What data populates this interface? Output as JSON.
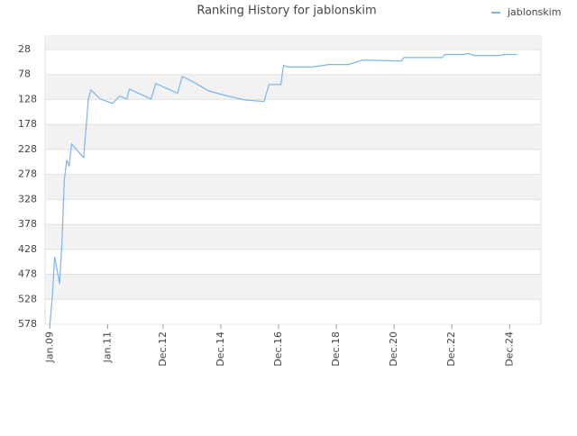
{
  "chart_data": {
    "type": "line",
    "title": "Ranking History for jablonskim",
    "x": [
      "2009-01",
      "2009-02",
      "2009-03",
      "2009-05",
      "2009-06",
      "2009-07",
      "2009-08",
      "2009-09",
      "2009-10",
      "2010-03",
      "2010-05",
      "2010-06",
      "2010-10",
      "2011-03",
      "2011-06",
      "2011-09",
      "2011-10",
      "2012-07",
      "2012-09",
      "2013-03",
      "2013-06",
      "2013-08",
      "2013-11",
      "2014-01",
      "2014-07",
      "2015-02",
      "2015-10",
      "2016-06",
      "2016-08",
      "2017-01",
      "2017-02",
      "2017-04",
      "2018-02",
      "2018-09",
      "2019-05",
      "2019-11",
      "2021-03",
      "2021-04",
      "2022-08",
      "2022-09",
      "2023-05",
      "2023-07",
      "2023-09",
      "2024-08",
      "2024-10",
      "2025-03"
    ],
    "series": [
      {
        "name": "jablonskim",
        "color": "#7cb5ec",
        "values": [
          578,
          524,
          443,
          497,
          416,
          289,
          249,
          262,
          217,
          244,
          127,
          109,
          127,
          136,
          121,
          127,
          107,
          127,
          96,
          109,
          116,
          82,
          89,
          94,
          111,
          120,
          129,
          132,
          98,
          98,
          60,
          63,
          63,
          58,
          58,
          49,
          51,
          44,
          44,
          38,
          38,
          36,
          40,
          40,
          38,
          38
        ]
      }
    ],
    "xlim": [
      "2008-11",
      "2026-01"
    ],
    "xticks": [
      {
        "value": "2009-01",
        "label": "Jan.09"
      },
      {
        "value": "2011-01",
        "label": "Jan.11"
      },
      {
        "value": "2012-12",
        "label": "Dec.12"
      },
      {
        "value": "2014-12",
        "label": "Dec.14"
      },
      {
        "value": "2016-12",
        "label": "Dec.16"
      },
      {
        "value": "2018-12",
        "label": "Dec.18"
      },
      {
        "value": "2020-12",
        "label": "Dec.20"
      },
      {
        "value": "2022-12",
        "label": "Dec.22"
      },
      {
        "value": "2024-12",
        "label": "Dec.24"
      }
    ],
    "ylim": [
      578,
      1
    ],
    "yticks": [
      28,
      78,
      128,
      178,
      228,
      278,
      328,
      378,
      428,
      478,
      528,
      578
    ],
    "grid": true,
    "legend": "top-right"
  }
}
